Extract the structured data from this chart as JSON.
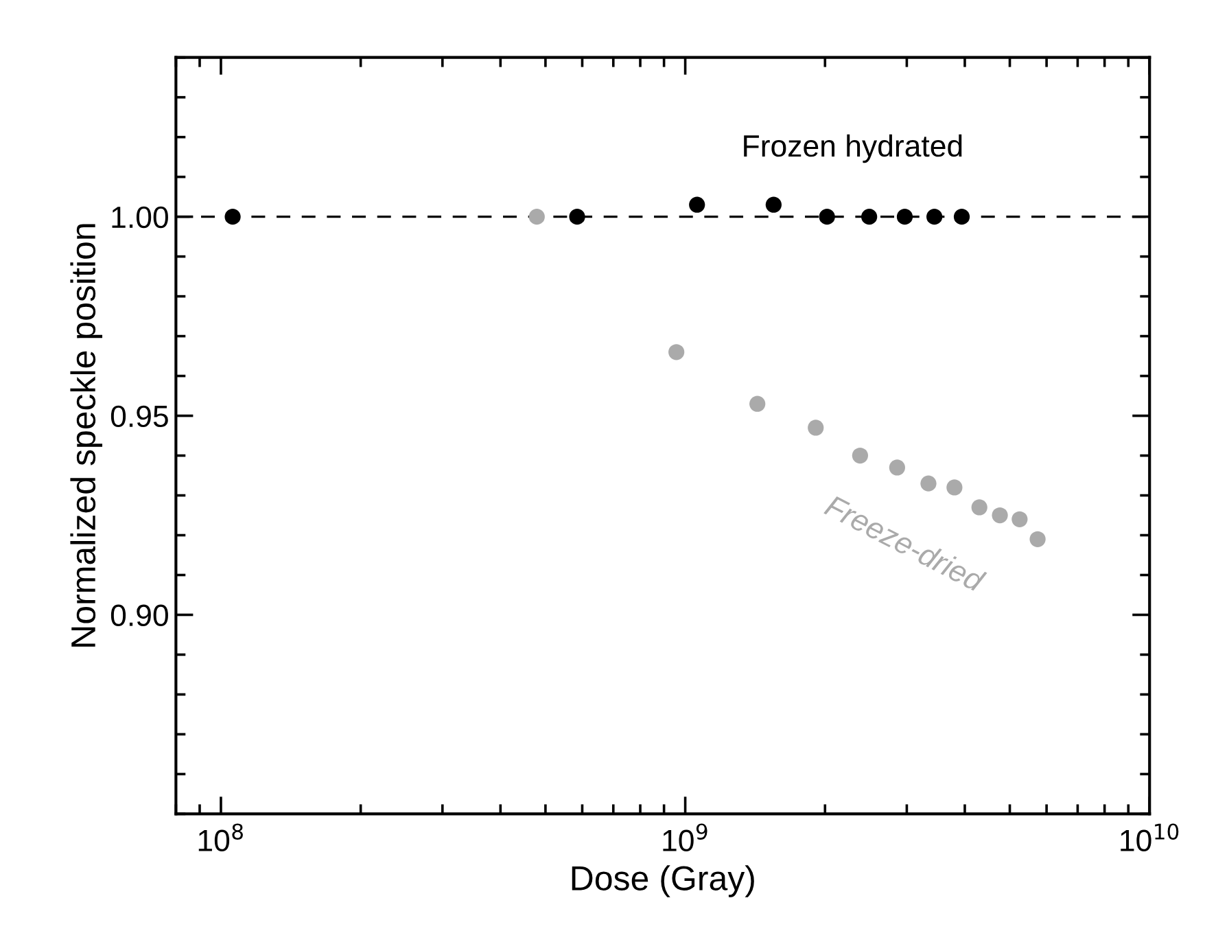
{
  "chart_data": {
    "type": "scatter",
    "xlabel": "Dose (Gray)",
    "ylabel": "Normalized speckle position",
    "log": "x",
    "xlim": [
      80000000.0,
      10000000000.0
    ],
    "xticks": [
      {
        "value": 100000000.0,
        "label": "10$^{8}$"
      },
      {
        "value": 1000000000.0,
        "label": "10$^{9}$"
      },
      {
        "value": 10000000000.0,
        "label": "10$^{10}$"
      }
    ],
    "ylim": [
      0.85,
      1.04
    ],
    "yticks": [
      {
        "value": 0.9,
        "label": "0.90"
      },
      {
        "value": 0.95,
        "label": "0.95"
      },
      {
        "value": 1.0,
        "label": "1.00"
      }
    ],
    "grid": false,
    "legend": false,
    "marker": "circle",
    "ref_lines": [
      {
        "axis": "y",
        "value": 1.0,
        "color": "#000000",
        "line_style": "dashed"
      }
    ],
    "series": [
      {
        "name": "Frozen hydrated",
        "color": "#000000",
        "x": [
          106000000.0,
          585000000.0,
          1060000000.0,
          1550000000.0,
          2020000000.0,
          2490000000.0,
          2970000000.0,
          3440000000.0,
          3940000000.0
        ],
        "values": [
          1.0,
          1.0,
          1.003,
          1.003,
          1.0,
          1.0,
          1.0,
          1.0,
          1.0
        ]
      },
      {
        "name": "Freeze-dried",
        "color": "#aaaaaa",
        "x": [
          479000000.0,
          957000000.0,
          1430000000.0,
          1910000000.0,
          2380000000.0,
          2860000000.0,
          3340000000.0,
          3800000000.0,
          4300000000.0,
          4760000000.0,
          5250000000.0,
          5740000000.0
        ],
        "values": [
          1.0,
          0.966,
          0.953,
          0.947,
          0.94,
          0.937,
          0.933,
          0.932,
          0.927,
          0.925,
          0.924,
          0.919
        ]
      }
    ]
  }
}
